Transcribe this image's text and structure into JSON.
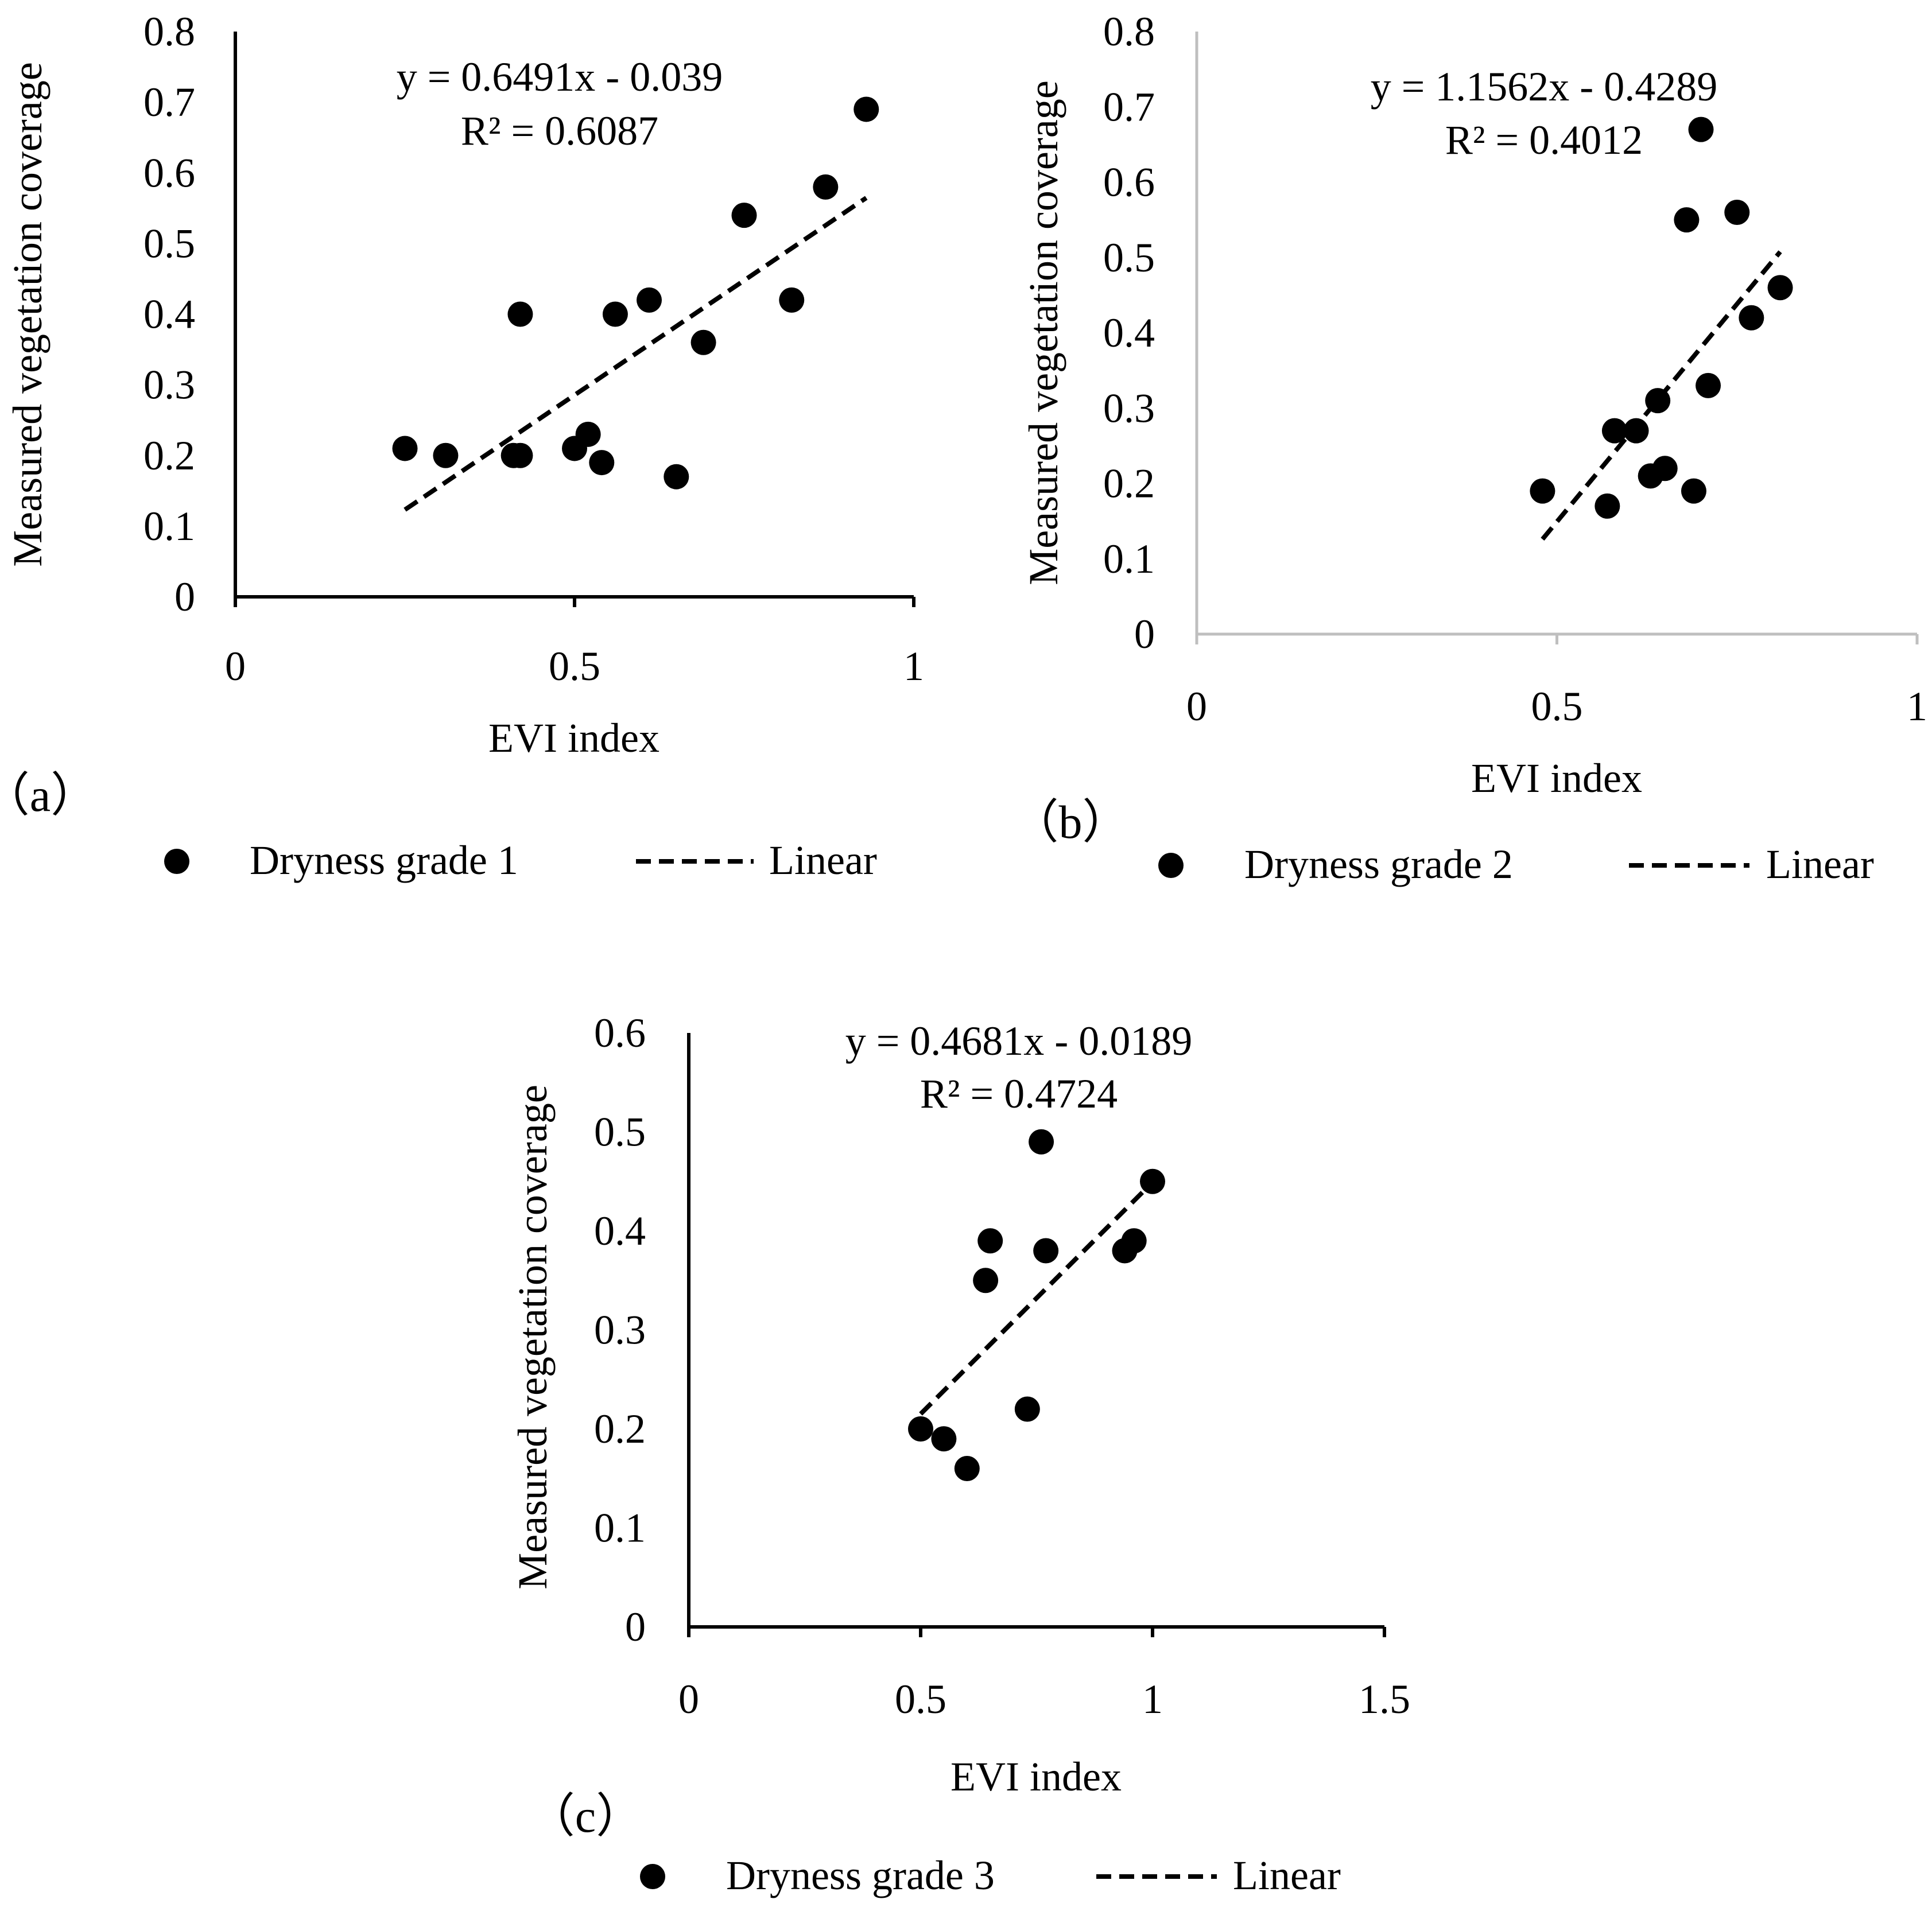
{
  "chart_data": [
    {
      "type": "scatter",
      "panel_label": "（a）",
      "xlabel": "EVI index",
      "ylabel": "Measured vegetation coverage",
      "xlim": [
        0,
        1
      ],
      "ylim": [
        0,
        0.8
      ],
      "x_ticks": [
        "0",
        "0.5",
        "1"
      ],
      "y_ticks": [
        "0",
        "0.1",
        "0.2",
        "0.3",
        "0.4",
        "0.5",
        "0.6",
        "0.7",
        "0.8"
      ],
      "equation": "y = 0.6491x - 0.039",
      "r_squared": "R² = 0.6087",
      "trendline": {
        "slope": 0.6491,
        "intercept": -0.039,
        "x_start": 0.25,
        "x_end": 0.93
      },
      "legend": {
        "series": "Dryness grade 1",
        "trend": "Linear"
      },
      "series": [
        {
          "name": "Dryness grade 1",
          "x": [
            0.25,
            0.31,
            0.41,
            0.42,
            0.42,
            0.5,
            0.52,
            0.54,
            0.56,
            0.61,
            0.65,
            0.69,
            0.75,
            0.82,
            0.87,
            0.93
          ],
          "y": [
            0.21,
            0.2,
            0.2,
            0.2,
            0.4,
            0.21,
            0.23,
            0.19,
            0.4,
            0.42,
            0.17,
            0.36,
            0.54,
            0.42,
            0.58,
            0.69
          ]
        }
      ]
    },
    {
      "type": "scatter",
      "panel_label": "（b）",
      "xlabel": "EVI index",
      "ylabel": "Measured vegetation coverage",
      "xlim": [
        0,
        1
      ],
      "ylim": [
        0,
        0.8
      ],
      "x_ticks": [
        "0",
        "0.5",
        "1"
      ],
      "y_ticks": [
        "0",
        "0.1",
        "0.2",
        "0.3",
        "0.4",
        "0.5",
        "0.6",
        "0.7",
        "0.8"
      ],
      "equation": "y = 1.1562x - 0.4289",
      "r_squared": "R² = 0.4012",
      "trendline": {
        "slope": 1.1562,
        "intercept": -0.4289,
        "x_start": 0.48,
        "x_end": 0.81
      },
      "legend": {
        "series": "Dryness grade 2",
        "trend": "Linear"
      },
      "series": [
        {
          "name": "Dryness grade 2",
          "x": [
            0.48,
            0.57,
            0.58,
            0.61,
            0.63,
            0.64,
            0.65,
            0.68,
            0.69,
            0.7,
            0.71,
            0.75,
            0.77,
            0.81
          ],
          "y": [
            0.19,
            0.17,
            0.27,
            0.27,
            0.21,
            0.31,
            0.22,
            0.55,
            0.19,
            0.67,
            0.33,
            0.56,
            0.42,
            0.46
          ]
        }
      ]
    },
    {
      "type": "scatter",
      "panel_label": "（c）",
      "xlabel": "EVI index",
      "ylabel": "Measured vegetation coverage",
      "xlim": [
        0,
        1.5
      ],
      "ylim": [
        0,
        0.6
      ],
      "x_ticks": [
        "0",
        "0.5",
        "1",
        "1.5"
      ],
      "y_ticks": [
        "0",
        "0.1",
        "0.2",
        "0.3",
        "0.4",
        "0.5",
        "0.6"
      ],
      "equation": "y = 0.4681x - 0.0189",
      "r_squared": "R² = 0.4724",
      "trendline": {
        "slope": 0.4681,
        "intercept": -0.0189,
        "x_start": 0.5,
        "x_end": 1.0
      },
      "legend": {
        "series": "Dryness grade 3",
        "trend": "Linear"
      },
      "series": [
        {
          "name": "Dryness grade 3",
          "x": [
            0.5,
            0.55,
            0.6,
            0.64,
            0.65,
            0.73,
            0.76,
            0.77,
            0.94,
            0.96,
            1.0
          ],
          "y": [
            0.2,
            0.19,
            0.16,
            0.35,
            0.39,
            0.22,
            0.49,
            0.38,
            0.38,
            0.39,
            0.45
          ]
        }
      ]
    }
  ]
}
